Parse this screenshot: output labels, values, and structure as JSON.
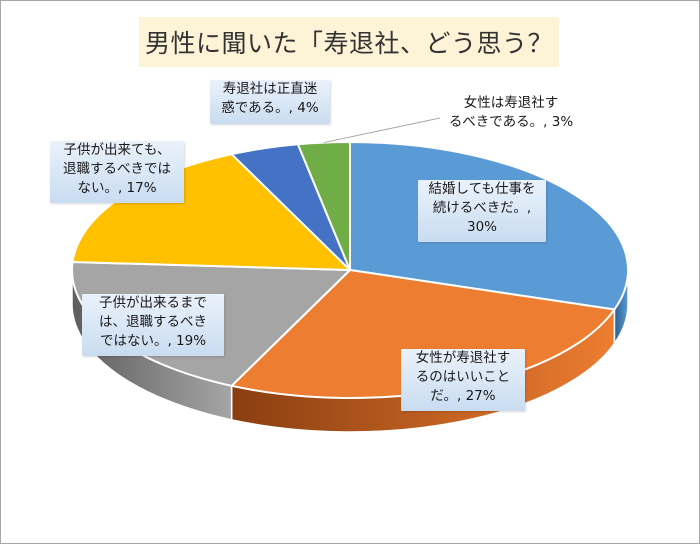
{
  "title": "男性に聞いた「寿退社、どう思う？",
  "chart_data": {
    "type": "pie",
    "title": "男性に聞いた「寿退社、どう思う？",
    "slices": [
      {
        "label": "結婚しても仕事を続けるべきだ。",
        "value": 30,
        "color": "#5b9bd5",
        "dark": "#2e5f8f"
      },
      {
        "label": "女性が寿退社するのはいいことだ。",
        "value": 27,
        "color": "#ed7d31",
        "dark": "#8a3e10"
      },
      {
        "label": "子供が出来るまでは、退職するべきではない。",
        "value": 19,
        "color": "#a5a5a5",
        "dark": "#5e5e5e"
      },
      {
        "label": "子供が出来ても、退職するべきではない。",
        "value": 17,
        "color": "#ffc000",
        "dark": "#9a7300"
      },
      {
        "label": "寿退社は正直迷惑である。",
        "value": 4,
        "color": "#4472c4",
        "dark": "#223f75"
      },
      {
        "label": "女性は寿退社するべきである。",
        "value": 3,
        "color": "#70ad47",
        "dark": "#3f6a24"
      }
    ]
  },
  "labels": [
    {
      "lines": [
        "結婚しても仕事を",
        "続けるべきだ。,",
        "30%"
      ]
    },
    {
      "lines": [
        "女性が寿退社す",
        "るのはいいこと",
        "だ。, 27%"
      ]
    },
    {
      "lines": [
        "子供が出来るまで",
        "は、退職するべき",
        "ではない。, 19%"
      ]
    },
    {
      "lines": [
        "子供が出来ても、",
        "退職するべきでは",
        "ない。, 17%"
      ]
    },
    {
      "lines": [
        "寿退社は正直迷",
        "惑である。, 4%"
      ]
    },
    {
      "lines": [
        "女性は寿退社す",
        "るべきである。, 3%"
      ]
    }
  ]
}
